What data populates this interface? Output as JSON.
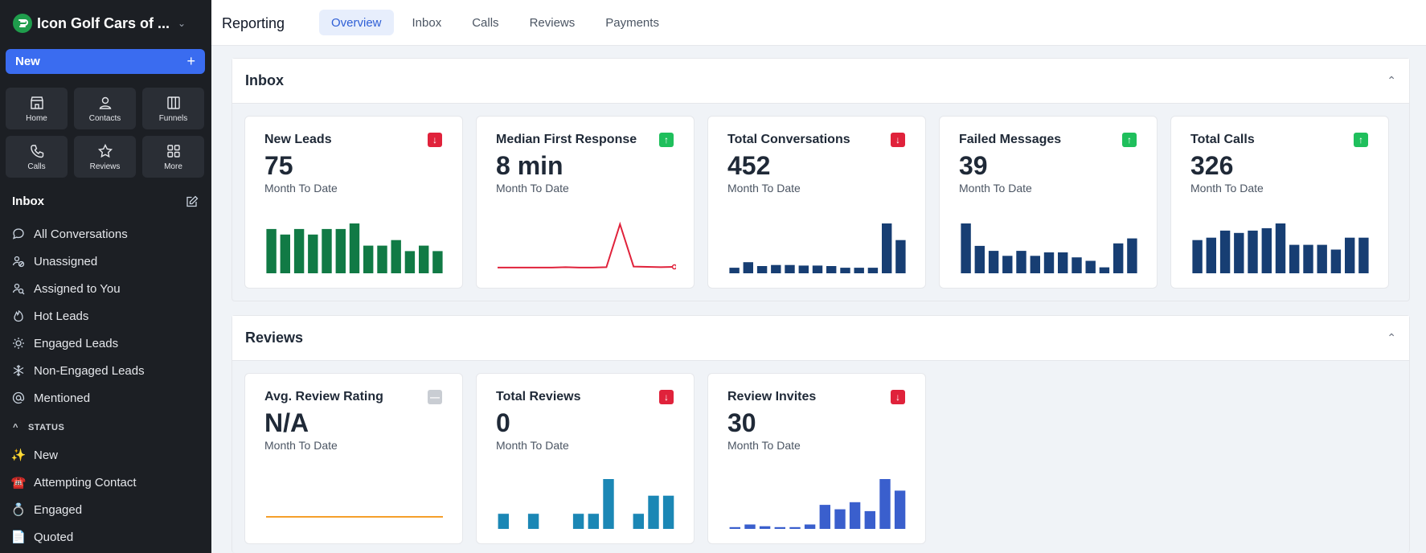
{
  "sidebar": {
    "brand": "Icon Golf Cars of ...",
    "new_label": "New",
    "tiles": [
      {
        "label": "Home",
        "icon": "store-icon"
      },
      {
        "label": "Contacts",
        "icon": "user-icon"
      },
      {
        "label": "Funnels",
        "icon": "columns-icon"
      },
      {
        "label": "Calls",
        "icon": "phone-icon"
      },
      {
        "label": "Reviews",
        "icon": "star-icon"
      },
      {
        "label": "More",
        "icon": "grid-icon"
      }
    ],
    "inbox_title": "Inbox",
    "nav": [
      {
        "label": "All Conversations"
      },
      {
        "label": "Unassigned"
      },
      {
        "label": "Assigned to You"
      },
      {
        "label": "Hot Leads"
      },
      {
        "label": "Engaged Leads"
      },
      {
        "label": "Non-Engaged Leads"
      },
      {
        "label": "Mentioned"
      }
    ],
    "status_title": "STATUS",
    "status": [
      {
        "label": "New",
        "emoji": "✨"
      },
      {
        "label": "Attempting Contact",
        "emoji": "☎️"
      },
      {
        "label": "Engaged",
        "emoji": "💍"
      },
      {
        "label": "Quoted",
        "emoji": "📄"
      }
    ]
  },
  "header": {
    "title": "Reporting",
    "tabs": [
      {
        "label": "Overview",
        "active": true
      },
      {
        "label": "Inbox"
      },
      {
        "label": "Calls"
      },
      {
        "label": "Reviews"
      },
      {
        "label": "Payments"
      }
    ]
  },
  "colors": {
    "green": "#117a45",
    "navy": "#173e73",
    "red_line": "#e0223b",
    "teal": "#1b87b5",
    "blue": "#3a5fcd",
    "orange": "#f59f2a"
  },
  "inbox": {
    "title": "Inbox",
    "cards": [
      {
        "title": "New Leads",
        "value": "75",
        "sub": "Month To Date",
        "trend": "down"
      },
      {
        "title": "Median First Response",
        "value": "8 min",
        "sub": "Month To Date",
        "trend": "up"
      },
      {
        "title": "Total Conversations",
        "value": "452",
        "sub": "Month To Date",
        "trend": "down"
      },
      {
        "title": "Failed Messages",
        "value": "39",
        "sub": "Month To Date",
        "trend": "up"
      },
      {
        "title": "Total Calls",
        "value": "326",
        "sub": "Month To Date",
        "trend": "up"
      }
    ]
  },
  "reviews": {
    "title": "Reviews",
    "cards": [
      {
        "title": "Avg. Review Rating",
        "value": "N/A",
        "sub": "Month To Date",
        "trend": "flat"
      },
      {
        "title": "Total Reviews",
        "value": "0",
        "sub": "Month To Date",
        "trend": "down"
      },
      {
        "title": "Review Invites",
        "value": "30",
        "sub": "Month To Date",
        "trend": "down"
      }
    ]
  },
  "chart_data": [
    {
      "type": "bar",
      "name": "new-leads",
      "color": "green",
      "values": [
        8,
        7,
        8,
        7,
        8,
        8,
        9,
        5,
        5,
        6,
        4,
        5,
        4
      ]
    },
    {
      "type": "line",
      "name": "median-first-response",
      "color": "red_line",
      "values": [
        1,
        1,
        1,
        1,
        1,
        1.1,
        1,
        1,
        1.1,
        14,
        1.3,
        1.2,
        1.1,
        1.2
      ]
    },
    {
      "type": "bar",
      "name": "total-conversations",
      "color": "navy",
      "values": [
        1,
        2,
        1.3,
        1.5,
        1.5,
        1.4,
        1.4,
        1.3,
        1,
        1,
        1,
        9,
        6
      ]
    },
    {
      "type": "bar",
      "name": "failed-messages",
      "color": "navy",
      "values": [
        10,
        5.5,
        4.5,
        3.5,
        4.5,
        3.5,
        4.2,
        4.2,
        3.2,
        2.5,
        1.2,
        6,
        7
      ]
    },
    {
      "type": "bar",
      "name": "total-calls",
      "color": "navy",
      "values": [
        7,
        7.5,
        9,
        8.5,
        9,
        9.5,
        10.5,
        6,
        6,
        6,
        5,
        7.5,
        7.5
      ]
    },
    {
      "type": "line",
      "name": "avg-review-rating",
      "color": "orange",
      "values": [
        0,
        0,
        0,
        0,
        0,
        0,
        0,
        0,
        0,
        0,
        0,
        0
      ]
    },
    {
      "type": "bar",
      "name": "total-reviews",
      "color": "teal",
      "values": [
        1,
        0,
        1,
        0,
        0,
        1,
        1,
        3.3,
        0,
        1,
        2.2,
        2.2
      ]
    },
    {
      "type": "bar",
      "name": "review-invites",
      "color": "blue",
      "values": [
        0.2,
        0.5,
        0.3,
        0.2,
        0.2,
        0.5,
        2.7,
        2.2,
        3,
        2,
        5.6,
        4.3
      ]
    }
  ]
}
